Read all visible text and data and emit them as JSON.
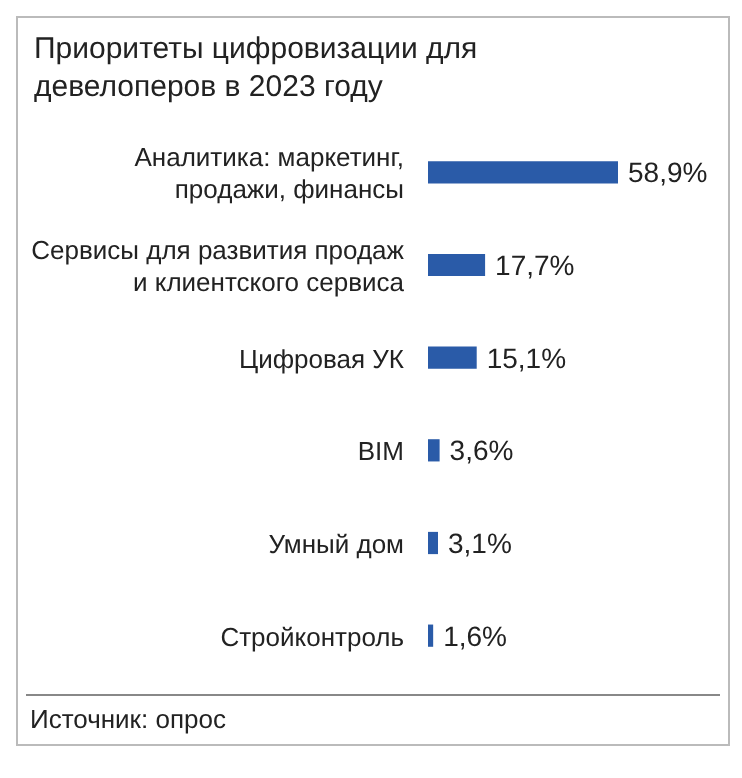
{
  "chart_data": {
    "type": "bar",
    "orientation": "horizontal",
    "title": "Приоритеты цифровизации для девелоперов в 2023 году",
    "categories": [
      "Аналитика: маркетинг, продажи, финансы",
      "Сервисы для развития продаж и клиентского сервиса",
      "Цифровая УК",
      "BIM",
      "Умный дом",
      "Стройконтроль"
    ],
    "values": [
      58.9,
      17.7,
      15.1,
      3.6,
      3.1,
      1.6
    ],
    "value_labels": [
      "58,9%",
      "17,7%",
      "15,1%",
      "3,6%",
      "3,1%",
      "1,6%"
    ],
    "color": "#2a5ba8",
    "annotations": [
      "Источник: опрос"
    ]
  }
}
